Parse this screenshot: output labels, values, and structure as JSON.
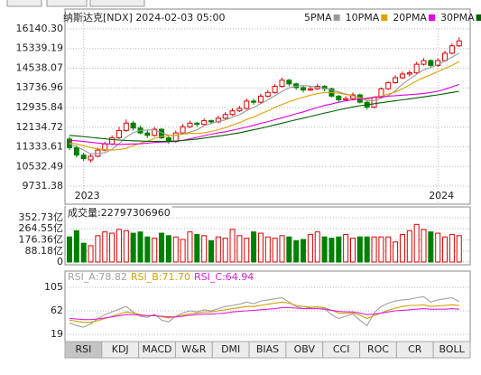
{
  "chart_data": [
    {
      "type": "candlestick",
      "title": "纳斯达克[NDX]  2024-02-03 05:00",
      "categories": [
        null,
        null,
        "2023",
        null,
        null,
        null,
        null,
        null,
        null,
        null,
        null,
        null,
        null,
        null,
        null,
        null,
        null,
        null,
        null,
        null,
        null,
        null,
        null,
        null,
        null,
        null,
        null,
        null,
        null,
        null,
        null,
        null,
        null,
        null,
        null,
        null,
        null,
        null,
        null,
        null,
        null,
        null,
        null,
        null,
        null,
        null,
        null,
        null,
        null,
        null,
        null,
        null,
        "2024",
        null,
        null,
        null
      ],
      "ohlc": [
        [
          11650,
          11750,
          11200,
          11300
        ],
        [
          11300,
          11400,
          10900,
          11000
        ],
        [
          11000,
          11100,
          10750,
          10850
        ],
        [
          10800,
          11050,
          10700,
          10950
        ],
        [
          10950,
          11300,
          10900,
          11200
        ],
        [
          11200,
          11550,
          11150,
          11450
        ],
        [
          11450,
          11800,
          11400,
          11700
        ],
        [
          11700,
          12150,
          11650,
          12000
        ],
        [
          12000,
          12450,
          11950,
          12300
        ],
        [
          12300,
          12400,
          12000,
          12100
        ],
        [
          12100,
          12200,
          11850,
          11900
        ],
        [
          11900,
          12000,
          11700,
          11800
        ],
        [
          11800,
          12150,
          11750,
          12050
        ],
        [
          12050,
          12100,
          11650,
          11700
        ],
        [
          11700,
          11800,
          11450,
          11550
        ],
        [
          11550,
          12000,
          11500,
          11900
        ],
        [
          11900,
          12250,
          11850,
          12150
        ],
        [
          12150,
          12400,
          12100,
          12300
        ],
        [
          12300,
          12350,
          12150,
          12250
        ],
        [
          12250,
          12500,
          12200,
          12400
        ],
        [
          12400,
          12450,
          12250,
          12350
        ],
        [
          12350,
          12600,
          12300,
          12500
        ],
        [
          12500,
          12750,
          12450,
          12650
        ],
        [
          12650,
          12900,
          12600,
          12800
        ],
        [
          12800,
          13000,
          12750,
          12900
        ],
        [
          12900,
          13300,
          12850,
          13200
        ],
        [
          13200,
          13300,
          13050,
          13150
        ],
        [
          13150,
          13500,
          13100,
          13400
        ],
        [
          13400,
          13650,
          13350,
          13550
        ],
        [
          13550,
          13900,
          13500,
          13800
        ],
        [
          13800,
          14150,
          13750,
          14050
        ],
        [
          14050,
          14100,
          13800,
          13900
        ],
        [
          13900,
          13950,
          13650,
          13750
        ],
        [
          13750,
          13800,
          13550,
          13650
        ],
        [
          13650,
          13800,
          13600,
          13700
        ],
        [
          13700,
          13900,
          13650,
          13800
        ],
        [
          13800,
          13850,
          13600,
          13700
        ],
        [
          13700,
          13750,
          13350,
          13400
        ],
        [
          13400,
          13450,
          13150,
          13250
        ],
        [
          13250,
          13400,
          13200,
          13300
        ],
        [
          13300,
          13550,
          13250,
          13450
        ],
        [
          13450,
          13500,
          13100,
          13150
        ],
        [
          13150,
          13200,
          12850,
          12950
        ],
        [
          12950,
          13400,
          12900,
          13350
        ],
        [
          13350,
          13750,
          13300,
          13700
        ],
        [
          13700,
          14000,
          13650,
          13950
        ],
        [
          13950,
          14250,
          13900,
          14150
        ],
        [
          14150,
          14400,
          14100,
          14300
        ],
        [
          14300,
          14450,
          14200,
          14350
        ],
        [
          14350,
          14800,
          14300,
          14700
        ],
        [
          14700,
          14950,
          14650,
          14850
        ],
        [
          14850,
          14900,
          14550,
          14650
        ],
        [
          14650,
          14950,
          14600,
          14850
        ],
        [
          14850,
          15250,
          14800,
          15150
        ],
        [
          15150,
          15550,
          15100,
          15450
        ],
        [
          15450,
          15800,
          15400,
          15650
        ]
      ],
      "up_color": "#e00000",
      "down_color": "#008000",
      "series": [
        {
          "name": "5PMA",
          "color": "#999999",
          "values": [
            11450,
            11350,
            11200,
            11050,
            11060,
            11090,
            11230,
            11460,
            11730,
            11910,
            12000,
            12020,
            12030,
            11910,
            11800,
            11800,
            11870,
            11930,
            12030,
            12200,
            12290,
            12360,
            12430,
            12540,
            12640,
            12810,
            12940,
            13090,
            13240,
            13420,
            13590,
            13740,
            13810,
            13830,
            13810,
            13760,
            13720,
            13650,
            13570,
            13490,
            13420,
            13310,
            13220,
            13220,
            13320,
            13420,
            13620,
            13890,
            14090,
            14290,
            14470,
            14570,
            14680,
            14840,
            14990,
            15150
          ]
        },
        {
          "name": "10PMA",
          "color": "#e0a000",
          "values": [
            11500,
            11450,
            11380,
            11300,
            11250,
            11220,
            11200,
            11220,
            11270,
            11380,
            11480,
            11570,
            11680,
            11760,
            11790,
            11810,
            11850,
            11880,
            11880,
            11910,
            11960,
            12030,
            12110,
            12220,
            12320,
            12450,
            12550,
            12680,
            12800,
            12940,
            13060,
            13170,
            13270,
            13360,
            13440,
            13500,
            13550,
            13550,
            13520,
            13470,
            13410,
            13340,
            13260,
            13370,
            13400,
            13480,
            13570,
            13700,
            13850,
            14020,
            14160,
            14270,
            14400,
            14530,
            14660,
            14810
          ]
        },
        {
          "name": "20PMA",
          "color": "#e000e0",
          "values": [
            11600,
            11580,
            11550,
            11520,
            11490,
            11460,
            11440,
            11430,
            11440,
            11450,
            11460,
            11480,
            11510,
            11530,
            11540,
            11560,
            11600,
            11660,
            11720,
            11790,
            11850,
            11900,
            11950,
            12010,
            12070,
            12140,
            12210,
            12290,
            12360,
            12440,
            12520,
            12600,
            12680,
            12760,
            12850,
            12940,
            13020,
            13080,
            13150,
            13210,
            13250,
            13290,
            13320,
            13350,
            13370,
            13400,
            13420,
            13440,
            13460,
            13480,
            13510,
            13550,
            13600,
            13680,
            13780,
            13880
          ]
        },
        {
          "name": "30PMA",
          "color": "#006000",
          "values": [
            11800,
            11780,
            11750,
            11720,
            11690,
            11660,
            11630,
            11610,
            11590,
            11580,
            11570,
            11560,
            11560,
            11560,
            11560,
            11570,
            11590,
            11620,
            11650,
            11690,
            11730,
            11770,
            11810,
            11860,
            11910,
            11970,
            12030,
            12090,
            12160,
            12230,
            12300,
            12370,
            12440,
            12500,
            12570,
            12640,
            12710,
            12770,
            12840,
            12900,
            12960,
            13010,
            13050,
            13090,
            13130,
            13170,
            13210,
            13250,
            13290,
            13330,
            13370,
            13410,
            13450,
            13500,
            13550,
            13600
          ]
        }
      ],
      "ylim": [
        9731.38,
        16140.3
      ],
      "yticks": [
        9731.38,
        10532.49,
        11333.61,
        12134.72,
        12935.84,
        13736.96,
        14538.07,
        15339.19,
        {
          "value": 16140.3,
          "label": "16140.30"
        }
      ],
      "grid": true
    },
    {
      "type": "bar",
      "title": "成交量:22797306960",
      "values": [
        200,
        250,
        150,
        130,
        210,
        240,
        230,
        260,
        250,
        230,
        240,
        200,
        190,
        230,
        210,
        200,
        180,
        240,
        220,
        210,
        170,
        200,
        190,
        260,
        210,
        190,
        240,
        230,
        200,
        190,
        210,
        200,
        170,
        180,
        220,
        240,
        200,
        190,
        200,
        220,
        190,
        200,
        200,
        200,
        200,
        200,
        160,
        220,
        250,
        300,
        260,
        240,
        230,
        200,
        220,
        210
      ],
      "up_color": "#e00000",
      "down_color": "#008000",
      "ylim": [
        0,
        352.73
      ],
      "yticks": [
        0,
        {
          "value": 88.18,
          "label": "88.18亿"
        },
        {
          "value": 176.36,
          "label": "176.36亿"
        },
        {
          "value": 264.55,
          "label": "264.55亿"
        },
        {
          "value": 352.73,
          "label": "352.73亿"
        }
      ],
      "grid": true
    },
    {
      "type": "line",
      "title": "RSI",
      "series": [
        {
          "name": "RSI_A",
          "label": "RSI_A:78.82",
          "color": "#a0a0a0",
          "values": [
            40,
            35,
            32,
            38,
            48,
            55,
            60,
            65,
            70,
            60,
            52,
            50,
            56,
            45,
            42,
            52,
            58,
            62,
            60,
            64,
            62,
            66,
            70,
            72,
            74,
            78,
            75,
            80,
            82,
            84,
            86,
            78,
            70,
            66,
            68,
            70,
            66,
            55,
            48,
            52,
            56,
            45,
            35,
            58,
            70,
            76,
            80,
            82,
            83,
            86,
            88,
            78,
            82,
            84,
            86,
            78.82
          ]
        },
        {
          "name": "RSI_B",
          "label": "RSI_B:71.70",
          "color": "#d0a000",
          "values": [
            45,
            43,
            41,
            41,
            44,
            48,
            52,
            56,
            60,
            58,
            55,
            53,
            54,
            51,
            49,
            51,
            54,
            57,
            58,
            60,
            60,
            62,
            64,
            66,
            68,
            70,
            70,
            72,
            74,
            76,
            78,
            76,
            72,
            70,
            69,
            69,
            68,
            63,
            58,
            57,
            58,
            54,
            48,
            53,
            58,
            63,
            67,
            70,
            72,
            72,
            73,
            70,
            71,
            72,
            73,
            71.7
          ]
        },
        {
          "name": "RSI_C",
          "label": "RSI_C:64.94",
          "color": "#e020e0",
          "values": [
            48,
            47,
            46,
            46,
            47,
            49,
            51,
            53,
            55,
            55,
            54,
            53,
            53,
            52,
            51,
            51,
            52,
            54,
            55,
            56,
            56,
            57,
            58,
            60,
            61,
            62,
            63,
            64,
            65,
            66,
            68,
            68,
            67,
            66,
            66,
            66,
            65,
            63,
            61,
            60,
            60,
            58,
            55,
            56,
            58,
            60,
            62,
            63,
            64,
            65,
            66,
            65,
            65,
            65,
            66,
            64.94
          ]
        }
      ],
      "ylim": [
        19,
        105
      ],
      "yticks": [
        19,
        62,
        105
      ],
      "grid": true
    }
  ],
  "tabs": [
    "RSI",
    "KDJ",
    "MACD",
    "W&R",
    "DMI",
    "BIAS",
    "OBV",
    "CCI",
    "ROC",
    "CR",
    "BOLL"
  ],
  "active_tab": "RSI"
}
